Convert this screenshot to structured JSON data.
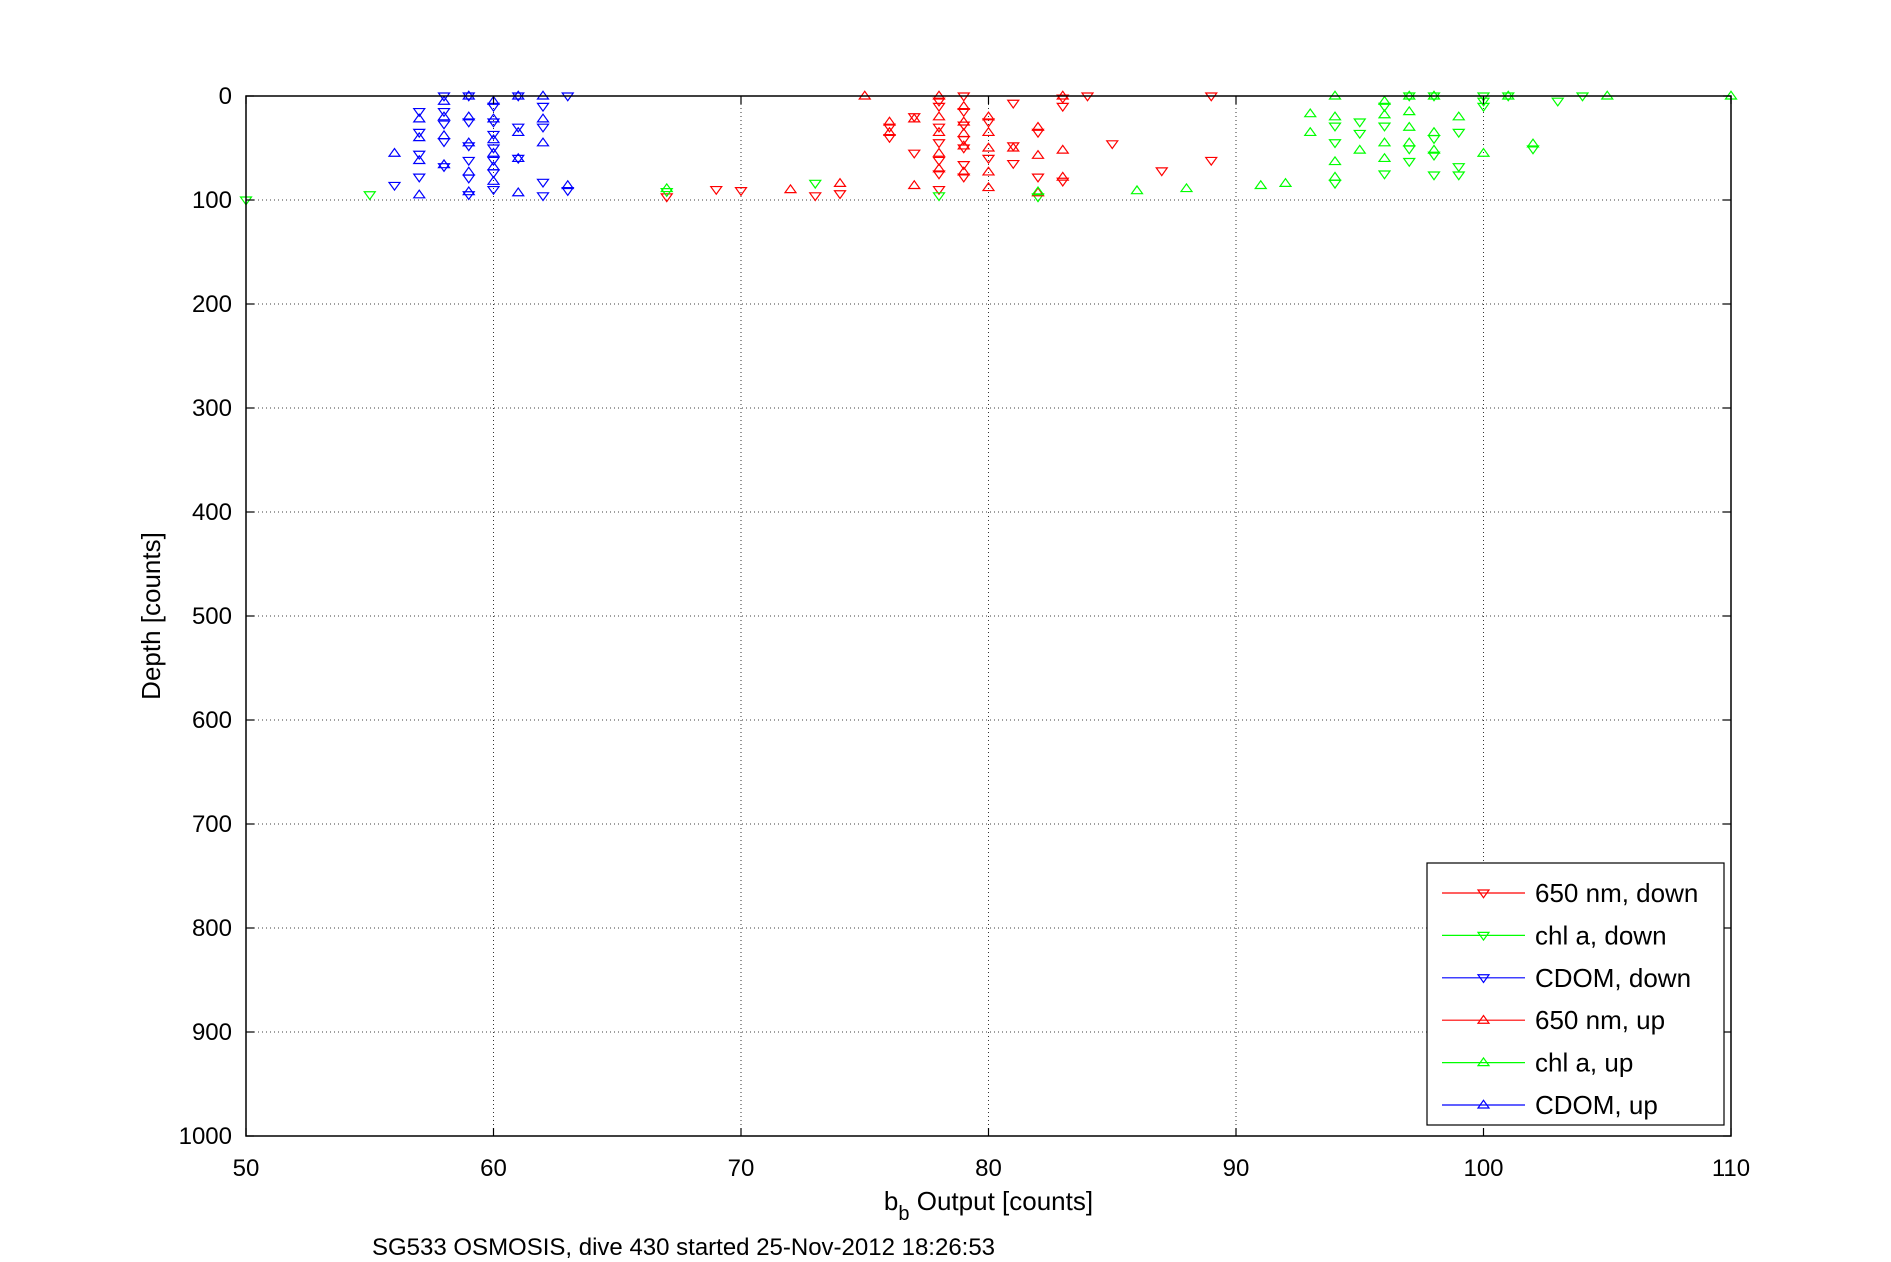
{
  "chart_data": {
    "type": "scatter",
    "title": "",
    "caption": "SG533 OSMOSIS, dive 430 started 25-Nov-2012 18:26:53",
    "xlabel_main": "b",
    "xlabel_sub": "b",
    "xlabel_rest": " Output [counts]",
    "ylabel": "Depth [counts]",
    "xlim": [
      50,
      110
    ],
    "ylim": [
      0,
      1000
    ],
    "y_reversed": true,
    "grid": true,
    "legend_position": "bottom-right",
    "x_ticks": [
      "50",
      "60",
      "70",
      "80",
      "90",
      "100",
      "110"
    ],
    "y_ticks": [
      "0",
      "100",
      "200",
      "300",
      "400",
      "500",
      "600",
      "700",
      "800",
      "900",
      "1000"
    ],
    "series": [
      {
        "name": "650 nm, down",
        "color": "#ff0000",
        "marker": "triangle-down",
        "points": [
          [
            67,
            97
          ],
          [
            69,
            90
          ],
          [
            70,
            91
          ],
          [
            73,
            96
          ],
          [
            74,
            94
          ],
          [
            76,
            30
          ],
          [
            76,
            40
          ],
          [
            77,
            20
          ],
          [
            77,
            55
          ],
          [
            78,
            5
          ],
          [
            78,
            10
          ],
          [
            78,
            30
          ],
          [
            78,
            45
          ],
          [
            78,
            62
          ],
          [
            78,
            75
          ],
          [
            78,
            90
          ],
          [
            79,
            0
          ],
          [
            79,
            15
          ],
          [
            79,
            28
          ],
          [
            79,
            42
          ],
          [
            79,
            50
          ],
          [
            79,
            66
          ],
          [
            79,
            78
          ],
          [
            80,
            25
          ],
          [
            80,
            60
          ],
          [
            81,
            7
          ],
          [
            81,
            48
          ],
          [
            81,
            65
          ],
          [
            82,
            35
          ],
          [
            82,
            78
          ],
          [
            83,
            2
          ],
          [
            83,
            10
          ],
          [
            83,
            82
          ],
          [
            84,
            0
          ],
          [
            85,
            46
          ],
          [
            87,
            72
          ],
          [
            89,
            0
          ],
          [
            89,
            62
          ]
        ]
      },
      {
        "name": "chl a, down",
        "color": "#00ff00",
        "marker": "triangle-down",
        "points": [
          [
            50,
            100
          ],
          [
            55,
            95
          ],
          [
            67,
            92
          ],
          [
            73,
            84
          ],
          [
            78,
            96
          ],
          [
            82,
            97
          ],
          [
            94,
            29
          ],
          [
            94,
            45
          ],
          [
            94,
            84
          ],
          [
            95,
            25
          ],
          [
            95,
            36
          ],
          [
            96,
            10
          ],
          [
            96,
            29
          ],
          [
            96,
            75
          ],
          [
            97,
            0
          ],
          [
            97,
            51
          ],
          [
            97,
            63
          ],
          [
            98,
            0
          ],
          [
            98,
            41
          ],
          [
            98,
            57
          ],
          [
            98,
            76
          ],
          [
            99,
            35
          ],
          [
            99,
            68
          ],
          [
            99,
            76
          ],
          [
            100,
            0
          ],
          [
            100,
            5
          ],
          [
            100,
            10
          ],
          [
            101,
            0
          ],
          [
            102,
            51
          ],
          [
            103,
            5
          ],
          [
            104,
            0
          ]
        ]
      },
      {
        "name": "CDOM, down",
        "color": "#0000ff",
        "marker": "triangle-down",
        "points": [
          [
            56,
            86
          ],
          [
            57,
            15
          ],
          [
            57,
            35
          ],
          [
            57,
            56
          ],
          [
            57,
            78
          ],
          [
            58,
            0
          ],
          [
            58,
            15
          ],
          [
            58,
            27
          ],
          [
            58,
            44
          ],
          [
            58,
            68
          ],
          [
            59,
            0
          ],
          [
            59,
            25
          ],
          [
            59,
            48
          ],
          [
            59,
            62
          ],
          [
            59,
            79
          ],
          [
            59,
            95
          ],
          [
            60,
            10
          ],
          [
            60,
            25
          ],
          [
            60,
            37
          ],
          [
            60,
            50
          ],
          [
            60,
            62
          ],
          [
            60,
            74
          ],
          [
            60,
            90
          ],
          [
            61,
            0
          ],
          [
            61,
            30
          ],
          [
            61,
            60
          ],
          [
            62,
            10
          ],
          [
            62,
            30
          ],
          [
            62,
            83
          ],
          [
            62,
            96
          ],
          [
            63,
            0
          ],
          [
            63,
            91
          ]
        ]
      },
      {
        "name": "650 nm, up",
        "color": "#ff0000",
        "marker": "triangle-up",
        "points": [
          [
            72,
            90
          ],
          [
            74,
            84
          ],
          [
            75,
            0
          ],
          [
            76,
            25
          ],
          [
            76,
            35
          ],
          [
            77,
            22
          ],
          [
            77,
            86
          ],
          [
            78,
            0
          ],
          [
            78,
            20
          ],
          [
            78,
            35
          ],
          [
            78,
            55
          ],
          [
            78,
            70
          ],
          [
            79,
            10
          ],
          [
            79,
            25
          ],
          [
            79,
            36
          ],
          [
            79,
            48
          ],
          [
            79,
            73
          ],
          [
            80,
            20
          ],
          [
            80,
            35
          ],
          [
            80,
            50
          ],
          [
            80,
            73
          ],
          [
            80,
            88
          ],
          [
            81,
            50
          ],
          [
            82,
            30
          ],
          [
            82,
            57
          ],
          [
            82,
            93
          ],
          [
            83,
            0
          ],
          [
            83,
            52
          ],
          [
            83,
            78
          ]
        ]
      },
      {
        "name": "chl a, up",
        "color": "#00ff00",
        "marker": "triangle-up",
        "points": [
          [
            67,
            89
          ],
          [
            82,
            92
          ],
          [
            86,
            91
          ],
          [
            88,
            89
          ],
          [
            91,
            86
          ],
          [
            92,
            84
          ],
          [
            93,
            17
          ],
          [
            93,
            35
          ],
          [
            94,
            0
          ],
          [
            94,
            20
          ],
          [
            94,
            63
          ],
          [
            94,
            78
          ],
          [
            95,
            52
          ],
          [
            96,
            5
          ],
          [
            96,
            18
          ],
          [
            96,
            45
          ],
          [
            96,
            60
          ],
          [
            97,
            0
          ],
          [
            97,
            15
          ],
          [
            97,
            30
          ],
          [
            97,
            45
          ],
          [
            98,
            0
          ],
          [
            98,
            35
          ],
          [
            98,
            52
          ],
          [
            99,
            20
          ],
          [
            100,
            55
          ],
          [
            101,
            0
          ],
          [
            102,
            46
          ],
          [
            105,
            0
          ],
          [
            110,
            0
          ]
        ]
      },
      {
        "name": "CDOM, up",
        "color": "#0000ff",
        "marker": "triangle-up",
        "points": [
          [
            56,
            55
          ],
          [
            57,
            22
          ],
          [
            57,
            40
          ],
          [
            57,
            62
          ],
          [
            57,
            95
          ],
          [
            58,
            5
          ],
          [
            58,
            20
          ],
          [
            58,
            38
          ],
          [
            58,
            66
          ],
          [
            59,
            0
          ],
          [
            59,
            20
          ],
          [
            59,
            45
          ],
          [
            59,
            73
          ],
          [
            59,
            92
          ],
          [
            60,
            5
          ],
          [
            60,
            22
          ],
          [
            60,
            42
          ],
          [
            60,
            55
          ],
          [
            60,
            68
          ],
          [
            60,
            82
          ],
          [
            61,
            0
          ],
          [
            61,
            35
          ],
          [
            61,
            60
          ],
          [
            61,
            93
          ],
          [
            62,
            0
          ],
          [
            62,
            22
          ],
          [
            62,
            45
          ],
          [
            63,
            86
          ]
        ]
      }
    ]
  }
}
